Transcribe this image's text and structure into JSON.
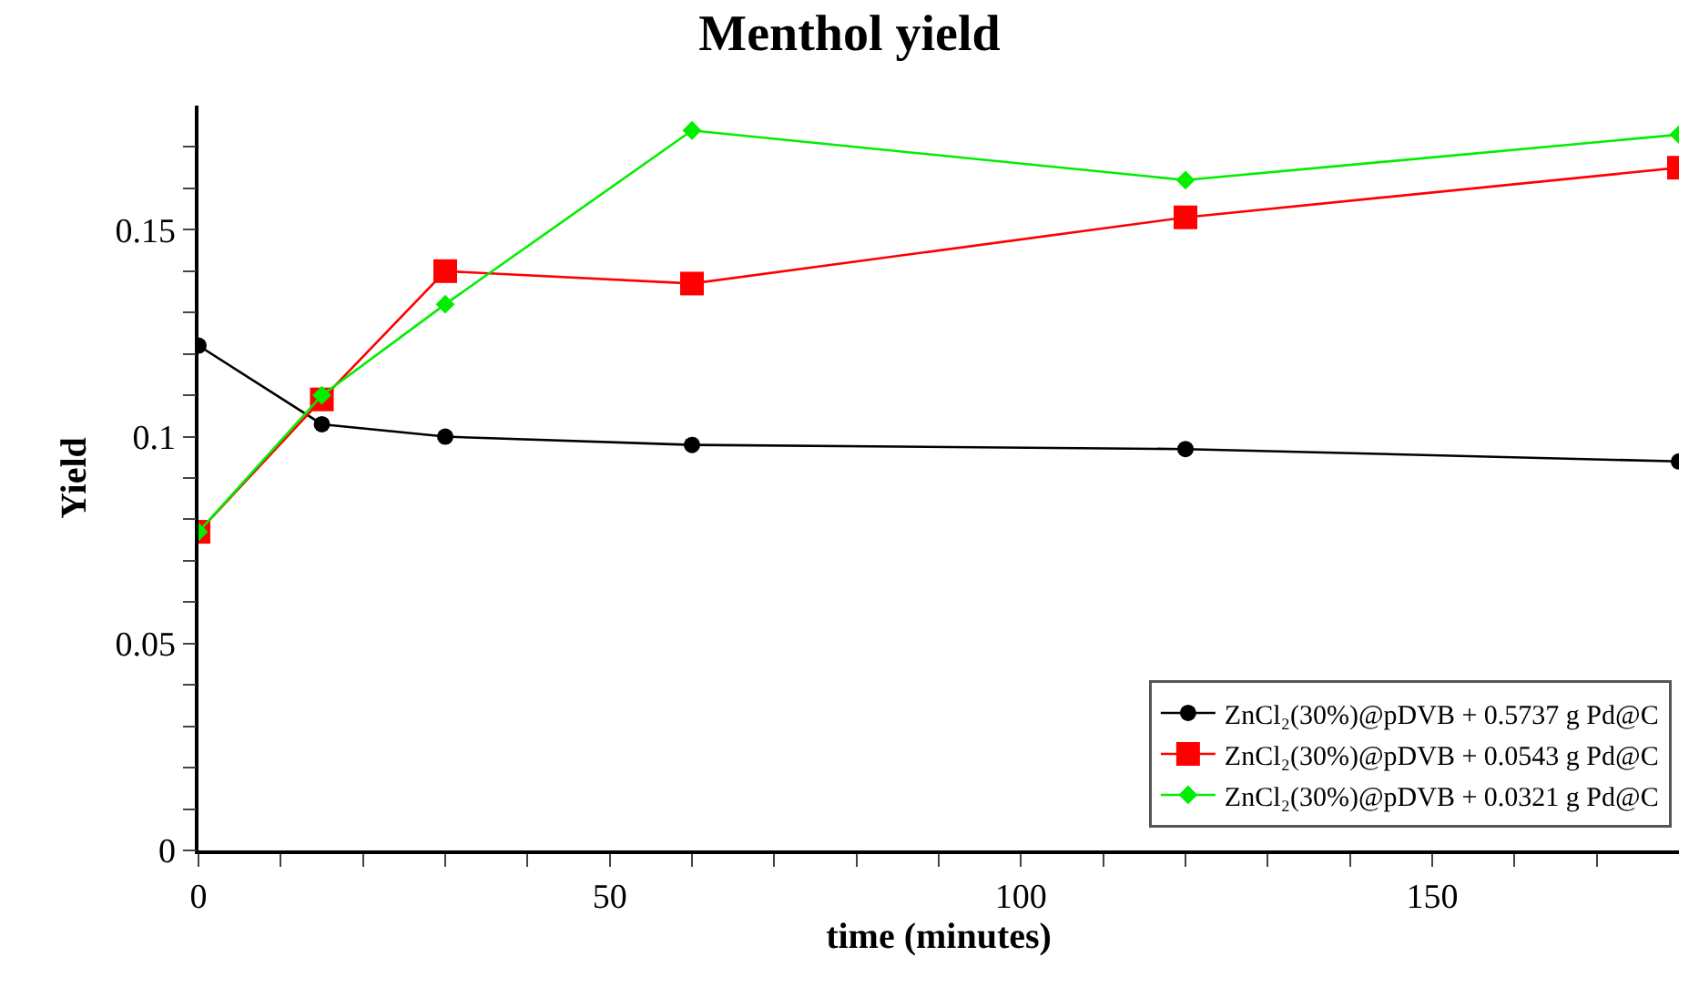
{
  "chart_data": {
    "type": "line",
    "title": "Menthol yield",
    "xlabel": "time (minutes)",
    "ylabel": "Yield",
    "x": [
      0,
      15,
      30,
      60,
      120,
      180
    ],
    "series": [
      {
        "name": "ZnCl₂(30%)@pDVB + 0.5737 g Pd@C",
        "color": "#000000",
        "marker": "circle",
        "values": [
          0.122,
          0.103,
          0.1,
          0.098,
          0.097,
          0.094
        ]
      },
      {
        "name": "ZnCl₂(30%)@pDVB + 0.0543 g Pd@C",
        "color": "#ff0000",
        "marker": "square",
        "values": [
          0.077,
          0.109,
          0.14,
          0.137,
          0.153,
          0.165
        ]
      },
      {
        "name": "ZnCl₂(30%)@pDVB + 0.0321 g Pd@C",
        "color": "#00ee00",
        "marker": "diamond",
        "values": [
          0.077,
          0.11,
          0.132,
          0.174,
          0.162,
          0.173
        ]
      }
    ],
    "xlim": [
      0,
      180
    ],
    "xticks": [
      0,
      {
        "value": 10,
        "label": null
      },
      {
        "value": 20,
        "label": null
      },
      {
        "value": 30,
        "label": null
      },
      {
        "value": 40,
        "label": null
      },
      50,
      {
        "value": 60,
        "label": null
      },
      {
        "value": 70,
        "label": null
      },
      {
        "value": 80,
        "label": null
      },
      {
        "value": 90,
        "label": null
      },
      100,
      {
        "value": 110,
        "label": null
      },
      {
        "value": 120,
        "label": null
      },
      {
        "value": 130,
        "label": null
      },
      {
        "value": 140,
        "label": null
      },
      150,
      {
        "value": 160,
        "label": null
      },
      {
        "value": 170,
        "label": null
      }
    ],
    "ylim": [
      0,
      0.18
    ],
    "yticks": [
      0,
      {
        "value": 0.01,
        "label": null
      },
      {
        "value": 0.02,
        "label": null
      },
      {
        "value": 0.03,
        "label": null
      },
      {
        "value": 0.04,
        "label": null
      },
      0.05,
      {
        "value": 0.06,
        "label": null
      },
      {
        "value": 0.07,
        "label": null
      },
      {
        "value": 0.08,
        "label": null
      },
      {
        "value": 0.09,
        "label": null
      },
      {
        "value": 0.1,
        "label": "0.1"
      },
      {
        "value": 0.11,
        "label": null
      },
      {
        "value": 0.12,
        "label": null
      },
      {
        "value": 0.13,
        "label": null
      },
      {
        "value": 0.14,
        "label": null
      },
      0.15,
      {
        "value": 0.16,
        "label": null
      },
      {
        "value": 0.17,
        "label": null
      }
    ],
    "grid": false,
    "legend": "bottom right",
    "line_style": "solid"
  }
}
